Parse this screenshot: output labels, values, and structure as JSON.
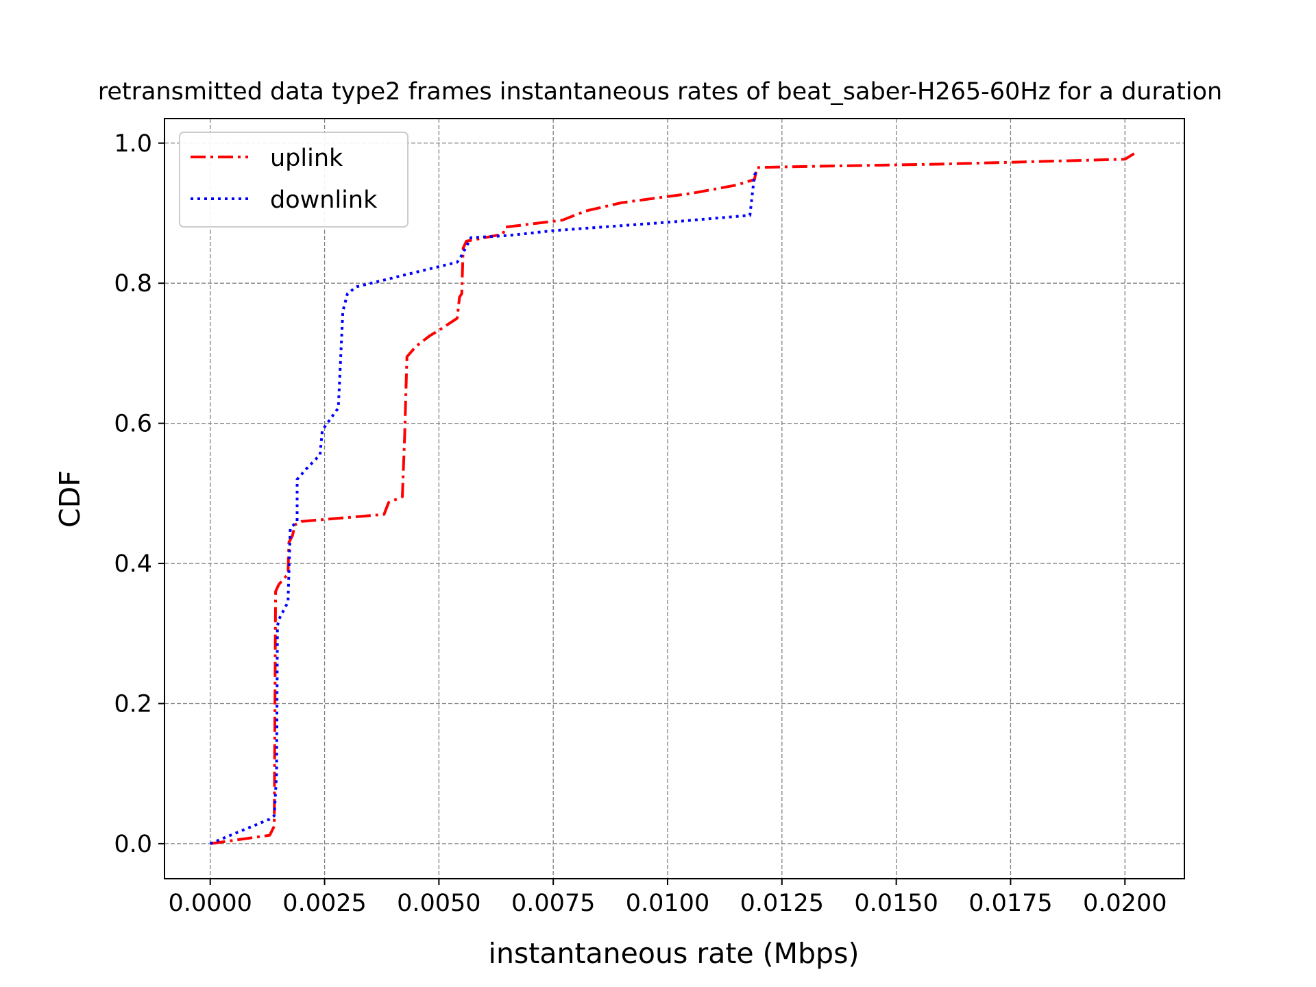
{
  "chart_data": {
    "type": "line",
    "title": "retransmitted data type2 frames instantaneous rates of beat_saber-H265-60Hz for a duration",
    "xlabel": "instantaneous rate (Mbps)",
    "ylabel": "CDF",
    "xlim": [
      -0.001,
      0.0213
    ],
    "ylim": [
      -0.05,
      1.035
    ],
    "x_ticks": [
      "0.0000",
      "0.0025",
      "0.0050",
      "0.0075",
      "0.0100",
      "0.0125",
      "0.0150",
      "0.0175",
      "0.0200"
    ],
    "y_ticks": [
      "0.0",
      "0.2",
      "0.4",
      "0.6",
      "0.8",
      "1.0"
    ],
    "grid": true,
    "legend_position": "top-left",
    "series": [
      {
        "name": "uplink",
        "color": "#ff0000",
        "line_style": "dashdot",
        "points": [
          [
            0.0,
            0.0
          ],
          [
            0.0013,
            0.012
          ],
          [
            0.0014,
            0.025
          ],
          [
            0.00143,
            0.36
          ],
          [
            0.0015,
            0.37
          ],
          [
            0.0017,
            0.385
          ],
          [
            0.00172,
            0.43
          ],
          [
            0.0018,
            0.44
          ],
          [
            0.00185,
            0.455
          ],
          [
            0.002,
            0.46
          ],
          [
            0.0038,
            0.47
          ],
          [
            0.0039,
            0.487
          ],
          [
            0.0042,
            0.495
          ],
          [
            0.00425,
            0.58
          ],
          [
            0.0043,
            0.695
          ],
          [
            0.0045,
            0.71
          ],
          [
            0.0048,
            0.725
          ],
          [
            0.0051,
            0.737
          ],
          [
            0.0054,
            0.75
          ],
          [
            0.00545,
            0.78
          ],
          [
            0.0055,
            0.785
          ],
          [
            0.00553,
            0.85
          ],
          [
            0.0056,
            0.86
          ],
          [
            0.0064,
            0.87
          ],
          [
            0.00645,
            0.88
          ],
          [
            0.0077,
            0.89
          ],
          [
            0.0082,
            0.903
          ],
          [
            0.009,
            0.915
          ],
          [
            0.0098,
            0.922
          ],
          [
            0.0105,
            0.928
          ],
          [
            0.0115,
            0.94
          ],
          [
            0.0119,
            0.948
          ],
          [
            0.01195,
            0.965
          ],
          [
            0.0125,
            0.966
          ],
          [
            0.016,
            0.97
          ],
          [
            0.02,
            0.977
          ],
          [
            0.0202,
            0.985
          ]
        ]
      },
      {
        "name": "downlink",
        "color": "#0000ff",
        "line_style": "dotted",
        "points": [
          [
            0.0,
            0.0
          ],
          [
            0.0013,
            0.035
          ],
          [
            0.0014,
            0.04
          ],
          [
            0.00145,
            0.1
          ],
          [
            0.00147,
            0.31
          ],
          [
            0.0015,
            0.32
          ],
          [
            0.0017,
            0.345
          ],
          [
            0.00175,
            0.45
          ],
          [
            0.0019,
            0.46
          ],
          [
            0.0019,
            0.52
          ],
          [
            0.0021,
            0.535
          ],
          [
            0.0024,
            0.555
          ],
          [
            0.00245,
            0.59
          ],
          [
            0.0028,
            0.622
          ],
          [
            0.0029,
            0.76
          ],
          [
            0.003,
            0.785
          ],
          [
            0.0032,
            0.795
          ],
          [
            0.0054,
            0.83
          ],
          [
            0.0055,
            0.84
          ],
          [
            0.0057,
            0.865
          ],
          [
            0.0065,
            0.868
          ],
          [
            0.0075,
            0.875
          ],
          [
            0.01,
            0.887
          ],
          [
            0.0118,
            0.897
          ],
          [
            0.0119,
            0.955
          ],
          [
            0.012,
            0.962
          ]
        ]
      }
    ]
  }
}
